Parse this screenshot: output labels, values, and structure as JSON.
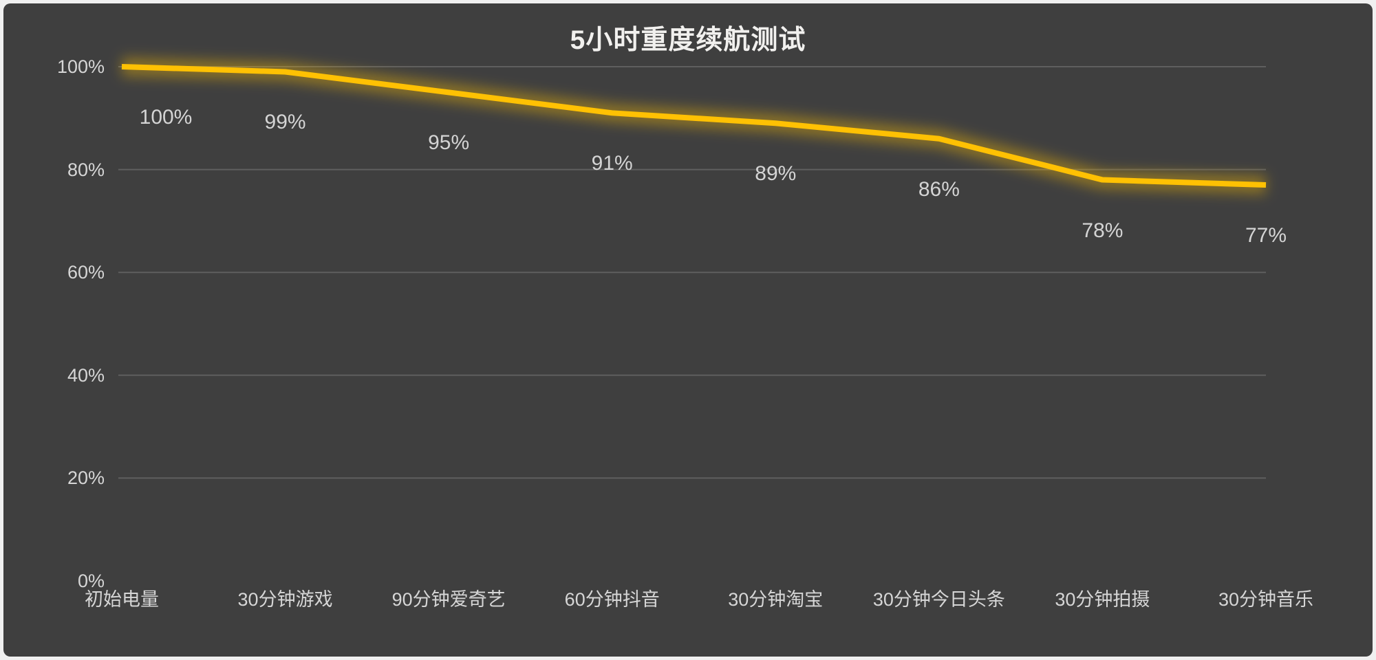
{
  "chart_data": {
    "type": "line",
    "title": "5小时重度续航测试",
    "categories": [
      "初始电量",
      "30分钟游戏",
      "90分钟爱奇艺",
      "60分钟抖音",
      "30分钟淘宝",
      "30分钟今日头条",
      "30分钟拍摄",
      "30分钟音乐"
    ],
    "values": [
      100,
      99,
      95,
      91,
      89,
      86,
      78,
      77
    ],
    "data_labels": [
      "100%",
      "99%",
      "95%",
      "91%",
      "89%",
      "86%",
      "78%",
      "77%"
    ],
    "y_ticks": [
      {
        "value": 0,
        "label": "0%"
      },
      {
        "value": 20,
        "label": "20%"
      },
      {
        "value": 40,
        "label": "40%"
      },
      {
        "value": 60,
        "label": "60%"
      },
      {
        "value": 80,
        "label": "80%"
      },
      {
        "value": 100,
        "label": "100%"
      }
    ],
    "ylim": [
      0,
      100
    ],
    "grid": true,
    "legend": false,
    "colors": {
      "line": "#FFC103",
      "glow": "#FFC000",
      "background": "#3F3F3F",
      "gridline": "#5F5F5F",
      "axis_text": "#D6D6D6",
      "title_text": "#F1F0EE"
    }
  }
}
